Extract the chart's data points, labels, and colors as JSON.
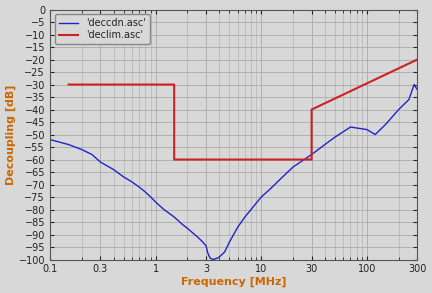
{
  "title": "",
  "xlabel": "Frequency [MHz]",
  "ylabel": "Decoupling [dB]",
  "xlim": [
    0.1,
    300
  ],
  "ylim": [
    -100,
    0
  ],
  "yticks": [
    0,
    -5,
    -10,
    -15,
    -20,
    -25,
    -30,
    -35,
    -40,
    -45,
    -50,
    -55,
    -60,
    -65,
    -70,
    -75,
    -80,
    -85,
    -90,
    -95,
    -100
  ],
  "xticks": [
    0.1,
    0.3,
    1,
    3,
    10,
    30,
    100,
    300
  ],
  "xtick_labels": [
    "0.1",
    "0.3",
    "1",
    "3",
    "10",
    "30",
    "100",
    "300"
  ],
  "blue_label": "'deccdn.asc'",
  "red_label": "'declim.asc'",
  "blue_color": "#2222cc",
  "red_color": "#cc2222",
  "background_color": "#d8d8d8",
  "grid_color": "#bbbbbb",
  "label_color": "#cc6600",
  "tick_color": "#222222",
  "blue_x": [
    0.1,
    0.15,
    0.2,
    0.25,
    0.3,
    0.4,
    0.5,
    0.6,
    0.7,
    0.8,
    0.9,
    1.0,
    1.2,
    1.5,
    1.8,
    2.0,
    2.2,
    2.5,
    2.8,
    3.0,
    3.05,
    3.1,
    3.2,
    3.3,
    3.5,
    3.8,
    4.0,
    4.5,
    5.0,
    6.0,
    7.0,
    8.0,
    10.0,
    12.0,
    15.0,
    20.0,
    30.0,
    40.0,
    50.0,
    70.0,
    100.0,
    120.0,
    150.0,
    200.0,
    250.0,
    280.0,
    300.0
  ],
  "blue_y": [
    -52,
    -54,
    -56,
    -58,
    -61,
    -64,
    -67,
    -69,
    -71,
    -73,
    -75,
    -77,
    -80,
    -83,
    -86,
    -87.5,
    -89,
    -91,
    -93,
    -94.5,
    -95.5,
    -97,
    -98.5,
    -99.5,
    -100,
    -99.5,
    -99,
    -97,
    -93,
    -87,
    -83,
    -80,
    -75,
    -72,
    -68,
    -63,
    -58,
    -54,
    -51,
    -47,
    -48,
    -50,
    -46,
    -40,
    -36,
    -30,
    -32
  ],
  "red_x": [
    0.15,
    1.5,
    1.5,
    30.0,
    30.0,
    300.0
  ],
  "red_y": [
    -30,
    -30,
    -60,
    -60,
    -40,
    -20
  ]
}
